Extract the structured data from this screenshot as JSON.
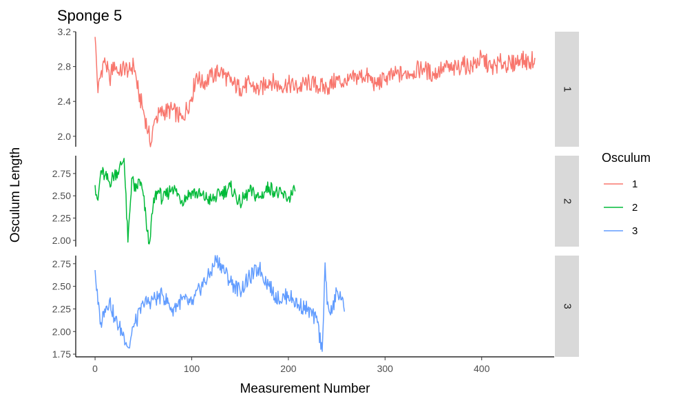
{
  "chart_data": {
    "type": "line",
    "title": "Sponge 5",
    "xlabel": "Measurement Number",
    "ylabel": "Osculum Length",
    "xlim": [
      -20,
      475
    ],
    "x_ticks": [
      0,
      100,
      200,
      300,
      400
    ],
    "legend": {
      "title": "Osculum",
      "position": "right"
    },
    "grid": false,
    "facets": [
      {
        "strip_label": "1",
        "series_name": "1",
        "color": "#F8766D",
        "ylim": [
          1.88,
          3.2
        ],
        "y_ticks": [
          2.0,
          2.4,
          2.8,
          3.2
        ],
        "x_points": [
          0,
          3,
          6,
          10,
          15,
          20,
          25,
          30,
          35,
          40,
          45,
          50,
          55,
          58,
          62,
          70,
          80,
          90,
          100,
          105,
          110,
          120,
          130,
          140,
          150,
          160,
          170,
          180,
          190,
          200,
          210,
          220,
          230,
          240,
          250,
          260,
          270,
          280,
          290,
          300,
          310,
          320,
          330,
          340,
          350,
          360,
          370,
          380,
          390,
          400,
          410,
          420,
          430,
          440,
          450,
          455
        ],
        "y_points": [
          3.14,
          2.5,
          2.72,
          2.9,
          2.65,
          2.85,
          2.7,
          2.8,
          2.75,
          2.82,
          2.5,
          2.3,
          2.05,
          1.92,
          2.2,
          2.28,
          2.3,
          2.2,
          2.45,
          2.72,
          2.6,
          2.68,
          2.75,
          2.62,
          2.55,
          2.6,
          2.52,
          2.65,
          2.58,
          2.6,
          2.55,
          2.62,
          2.58,
          2.55,
          2.65,
          2.6,
          2.68,
          2.7,
          2.6,
          2.65,
          2.7,
          2.72,
          2.75,
          2.78,
          2.7,
          2.8,
          2.76,
          2.82,
          2.8,
          2.9,
          2.78,
          2.85,
          2.82,
          2.88,
          2.85,
          2.9
        ]
      },
      {
        "strip_label": "2",
        "series_name": "2",
        "color": "#00BA38",
        "ylim": [
          1.93,
          2.95
        ],
        "y_ticks": [
          2.0,
          2.25,
          2.5,
          2.75
        ],
        "x_points": [
          0,
          3,
          6,
          10,
          15,
          20,
          25,
          30,
          34,
          38,
          42,
          46,
          50,
          54,
          56,
          58,
          62,
          66,
          70,
          80,
          90,
          100,
          110,
          120,
          130,
          140,
          150,
          160,
          170,
          180,
          190,
          200,
          207
        ],
        "y_points": [
          2.62,
          2.45,
          2.78,
          2.72,
          2.65,
          2.74,
          2.8,
          2.92,
          1.98,
          2.7,
          2.55,
          2.68,
          2.5,
          2.1,
          1.96,
          2.2,
          2.5,
          2.55,
          2.45,
          2.6,
          2.45,
          2.55,
          2.5,
          2.45,
          2.52,
          2.6,
          2.42,
          2.55,
          2.48,
          2.6,
          2.52,
          2.48,
          2.55
        ]
      },
      {
        "strip_label": "3",
        "series_name": "3",
        "color": "#619CFF",
        "ylim": [
          1.72,
          2.84
        ],
        "y_ticks": [
          1.75,
          2.0,
          2.25,
          2.5,
          2.75
        ],
        "x_points": [
          0,
          3,
          6,
          10,
          15,
          20,
          25,
          30,
          35,
          40,
          50,
          60,
          70,
          80,
          90,
          100,
          110,
          120,
          125,
          130,
          135,
          140,
          150,
          160,
          170,
          180,
          190,
          200,
          210,
          220,
          230,
          235,
          238,
          240,
          245,
          250,
          255,
          258
        ],
        "y_points": [
          2.68,
          2.3,
          2.1,
          2.25,
          2.35,
          2.15,
          2.05,
          1.95,
          1.82,
          2.05,
          2.3,
          2.35,
          2.4,
          2.25,
          2.35,
          2.3,
          2.5,
          2.65,
          2.8,
          2.75,
          2.65,
          2.55,
          2.45,
          2.6,
          2.7,
          2.5,
          2.35,
          2.4,
          2.3,
          2.25,
          2.1,
          1.78,
          2.76,
          2.3,
          2.2,
          2.45,
          2.35,
          2.22
        ]
      }
    ]
  }
}
